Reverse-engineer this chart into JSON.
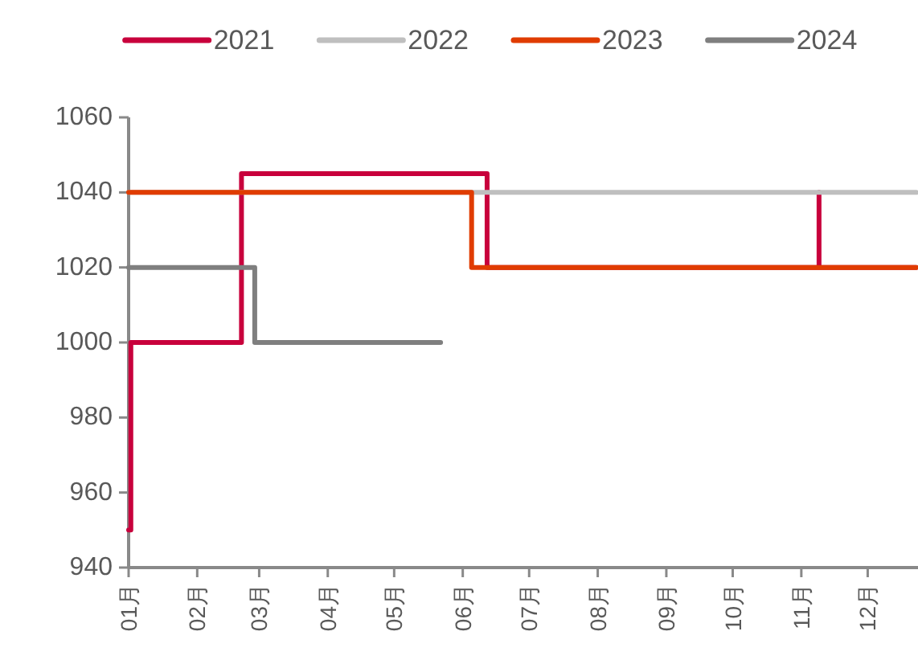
{
  "chart_data": {
    "type": "step",
    "legend": "top",
    "series": [
      {
        "name": "2021",
        "color": "#c8003c",
        "x": [
          "--01-01",
          "--01-02",
          "--01-02",
          "--02-20",
          "--02-21",
          "--06-08",
          "--06-12",
          "--11-09",
          "--11-09",
          "--11-09",
          "--12-23"
        ],
        "values": [
          950,
          950,
          1000,
          1000,
          1045,
          1045,
          1020,
          1020,
          1040,
          1020,
          1020
        ]
      },
      {
        "name": "2022",
        "color": "#bfbfbf",
        "x": [
          "--01-01",
          "--12-23"
        ],
        "values": [
          1040,
          1040
        ]
      },
      {
        "name": "2023",
        "color": "#e03c00",
        "x": [
          "--01-01",
          "--06-04",
          "--06-05",
          "--12-23"
        ],
        "values": [
          1040,
          1040,
          1020,
          1020
        ]
      },
      {
        "name": "2024",
        "color": "#7f7f7f",
        "x": [
          "--01-01",
          "--02-26",
          "--02-27",
          "--05-22"
        ],
        "values": [
          1020,
          1020,
          1000,
          1000
        ]
      }
    ],
    "xlim": [
      "--01-01",
      "--12-23"
    ],
    "xticks": [
      {
        "value": "--01-01",
        "label": "01月"
      },
      {
        "value": "--02-01",
        "label": "02月"
      },
      {
        "value": "--03-01",
        "label": "03月"
      },
      {
        "value": "--04-01",
        "label": "04月"
      },
      {
        "value": "--05-01",
        "label": "05月"
      },
      {
        "value": "--06-01",
        "label": "06月"
      },
      {
        "value": "--07-01",
        "label": "07月"
      },
      {
        "value": "--08-01",
        "label": "08月"
      },
      {
        "value": "--09-01",
        "label": "09月"
      },
      {
        "value": "--10-01",
        "label": "10月"
      },
      {
        "value": "--11-01",
        "label": "11月"
      },
      {
        "value": "--12-01",
        "label": "12月"
      }
    ],
    "ylim": [
      940,
      1060
    ],
    "yticks": [
      940,
      960,
      980,
      1000,
      1020,
      1040,
      1060
    ],
    "grid": false
  }
}
